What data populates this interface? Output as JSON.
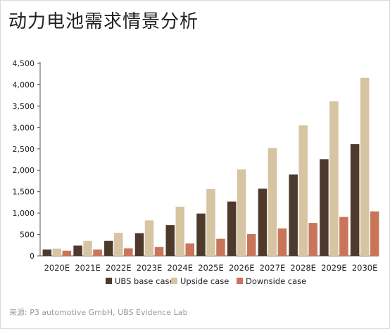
{
  "title": "动力电池需求情景分析",
  "source": "来源: P3 automotive GmbH, UBS Evidence Lab",
  "colors": {
    "base": "#4e3a2c",
    "upside": "#d6c4a2",
    "downside": "#c9755a",
    "axis": "#555555",
    "text": "#222222"
  },
  "chart_data": {
    "type": "bar",
    "categories": [
      "2020E",
      "2021E",
      "2022E",
      "2023E",
      "2024E",
      "2025E",
      "2026E",
      "2027E",
      "2028E",
      "2029E",
      "2030E"
    ],
    "series": [
      {
        "name": "UBS base case",
        "values": [
          150,
          240,
          350,
          530,
          720,
          990,
          1270,
          1570,
          1900,
          2260,
          2610
        ]
      },
      {
        "name": "Upside case",
        "values": [
          170,
          350,
          540,
          830,
          1150,
          1560,
          2020,
          2520,
          3050,
          3610,
          4160
        ]
      },
      {
        "name": "Downside case",
        "values": [
          120,
          150,
          175,
          210,
          290,
          400,
          510,
          640,
          770,
          910,
          1040
        ]
      }
    ],
    "yticks": [
      "0",
      "500",
      "1,000",
      "1,500",
      "2,000",
      "2,500",
      "3,000",
      "3,500",
      "4,000",
      "4,500"
    ],
    "ylim": [
      0,
      4500
    ],
    "grid": false,
    "legend_position": "bottom"
  }
}
